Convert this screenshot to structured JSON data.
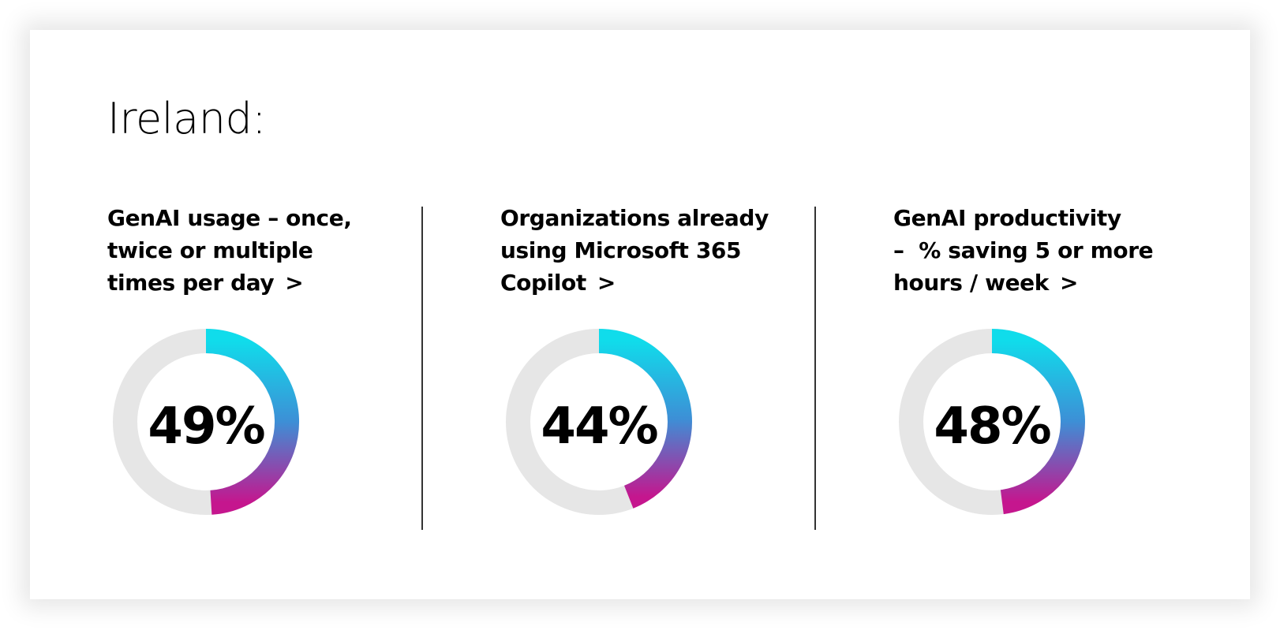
{
  "region": {
    "title": "Ireland:"
  },
  "stats": [
    {
      "title_lines": [
        "GenAI usage – once,",
        "twice or multiple",
        "times per day"
      ],
      "chevron": ">",
      "value_label": "49%"
    },
    {
      "title_lines": [
        "Organizations already",
        "using Microsoft 365",
        "Copilot"
      ],
      "chevron": ">",
      "value_label": "44%"
    },
    {
      "title_lines": [
        "GenAI productivity",
        "–  % saving 5 or more",
        "hours / week"
      ],
      "chevron": ">",
      "value_label": "48%"
    }
  ],
  "chart_data": [
    {
      "type": "pie",
      "variant": "donut",
      "values": [
        49,
        51
      ],
      "labels": [
        "",
        ""
      ],
      "center_label": "49%"
    },
    {
      "type": "pie",
      "variant": "donut",
      "values": [
        44,
        56
      ],
      "labels": [
        "",
        ""
      ],
      "center_label": "44%"
    },
    {
      "type": "pie",
      "variant": "donut",
      "values": [
        48,
        52
      ],
      "labels": [
        "",
        ""
      ],
      "center_label": "48%"
    }
  ],
  "colors": {
    "track": "#e6e6e6",
    "gradient_start": "#10dceb",
    "gradient_mid": "#3d8fd6",
    "gradient_end": "#c5168e",
    "text": "#000000",
    "divider": "#333333"
  }
}
